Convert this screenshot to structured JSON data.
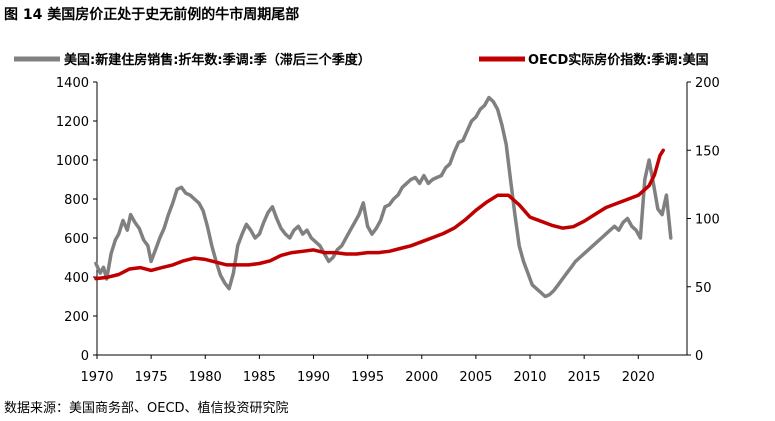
{
  "title": "图 14 美国房价正处于史无前例的牛市周期尾部",
  "source": "数据来源：美国商务部、OECD、植信投资研究院",
  "chart_data": {
    "type": "line",
    "legend_position": "top",
    "grid": false,
    "x_ticks": [
      "1970",
      "1975",
      "1980",
      "1985",
      "1990",
      "1995",
      "2000",
      "2005",
      "2010",
      "2015",
      "2020"
    ],
    "xlim": [
      1970,
      2024.5
    ],
    "y_left": {
      "ticks": [
        "0",
        "200",
        "400",
        "600",
        "800",
        "1000",
        "1200",
        "1400"
      ],
      "ylim": [
        0,
        1400
      ]
    },
    "y_right": {
      "ticks": [
        "0",
        "50",
        "100",
        "150",
        "200"
      ],
      "ylim": [
        0,
        200
      ]
    },
    "series": [
      {
        "name": "美国:新建住房销售:折年数:季调:季（滞后三个季度）",
        "axis": "left",
        "color": "#808080",
        "x": [
          1969.9,
          1970.3,
          1970.6,
          1970.9,
          1971.3,
          1971.7,
          1972.0,
          1972.4,
          1972.8,
          1973.1,
          1973.5,
          1973.9,
          1974.3,
          1974.7,
          1975.0,
          1975.4,
          1975.8,
          1976.2,
          1976.6,
          1977.0,
          1977.4,
          1977.8,
          1978.2,
          1978.6,
          1979.0,
          1979.4,
          1979.8,
          1980.2,
          1980.6,
          1981.0,
          1981.4,
          1981.8,
          1982.2,
          1982.6,
          1983.0,
          1983.4,
          1983.8,
          1984.2,
          1984.6,
          1985.0,
          1985.4,
          1985.8,
          1986.2,
          1986.6,
          1987.0,
          1987.4,
          1987.8,
          1988.2,
          1988.6,
          1989.0,
          1989.4,
          1989.8,
          1990.2,
          1990.6,
          1991.0,
          1991.4,
          1991.8,
          1992.2,
          1992.6,
          1993.0,
          1993.4,
          1993.8,
          1994.2,
          1994.6,
          1995.0,
          1995.4,
          1995.8,
          1996.2,
          1996.6,
          1997.0,
          1997.4,
          1997.8,
          1998.2,
          1998.6,
          1999.0,
          1999.4,
          1999.8,
          2000.2,
          2000.6,
          2001.0,
          2001.4,
          2001.8,
          2002.2,
          2002.6,
          2003.0,
          2003.4,
          2003.8,
          2004.2,
          2004.6,
          2005.0,
          2005.4,
          2005.8,
          2006.2,
          2006.6,
          2007.0,
          2007.4,
          2007.8,
          2008.2,
          2008.6,
          2009.0,
          2009.4,
          2009.8,
          2010.2,
          2010.6,
          2011.0,
          2011.4,
          2011.8,
          2012.2,
          2012.6,
          2013.0,
          2013.4,
          2013.8,
          2014.2,
          2014.6,
          2015.0,
          2015.4,
          2015.8,
          2016.2,
          2016.6,
          2017.0,
          2017.4,
          2017.8,
          2018.2,
          2018.6,
          2019.0,
          2019.4,
          2019.8,
          2020.2,
          2020.6,
          2021.0,
          2021.4,
          2021.8,
          2022.2,
          2022.6,
          2023.0
        ],
        "values": [
          470,
          420,
          450,
          390,
          520,
          590,
          620,
          690,
          640,
          720,
          680,
          650,
          590,
          560,
          480,
          540,
          600,
          650,
          720,
          780,
          850,
          860,
          830,
          820,
          800,
          780,
          740,
          660,
          560,
          480,
          410,
          370,
          340,
          420,
          560,
          620,
          670,
          640,
          600,
          620,
          680,
          730,
          760,
          700,
          650,
          620,
          600,
          640,
          660,
          620,
          640,
          600,
          580,
          560,
          520,
          480,
          500,
          540,
          560,
          600,
          640,
          680,
          720,
          780,
          660,
          620,
          650,
          690,
          760,
          770,
          800,
          820,
          860,
          880,
          900,
          910,
          880,
          920,
          880,
          900,
          910,
          920,
          960,
          980,
          1040,
          1090,
          1100,
          1150,
          1200,
          1220,
          1260,
          1280,
          1320,
          1300,
          1260,
          1180,
          1080,
          900,
          720,
          560,
          480,
          420,
          360,
          340,
          320,
          300,
          310,
          330,
          360,
          390,
          420,
          450,
          480,
          500,
          520,
          540,
          560,
          580,
          600,
          620,
          640,
          660,
          640,
          680,
          700,
          660,
          640,
          600,
          900,
          1000,
          880,
          750,
          720,
          820,
          600
        ]
      },
      {
        "name": "OECD实际房价指数:季调:美国",
        "axis": "right",
        "color": "#c00000",
        "x": [
          1969.9,
          1971.0,
          1972.0,
          1973.0,
          1974.0,
          1975.0,
          1976.0,
          1977.0,
          1978.0,
          1979.0,
          1980.0,
          1981.0,
          1982.0,
          1983.0,
          1984.0,
          1985.0,
          1986.0,
          1987.0,
          1988.0,
          1989.0,
          1990.0,
          1991.0,
          1992.0,
          1993.0,
          1994.0,
          1995.0,
          1996.0,
          1997.0,
          1998.0,
          1999.0,
          2000.0,
          2001.0,
          2002.0,
          2003.0,
          2004.0,
          2005.0,
          2006.0,
          2007.0,
          2008.0,
          2009.0,
          2010.0,
          2011.0,
          2012.0,
          2013.0,
          2014.0,
          2015.0,
          2016.0,
          2017.0,
          2018.0,
          2019.0,
          2020.0,
          2021.0,
          2021.5,
          2022.0,
          2022.3
        ],
        "values": [
          56,
          57,
          59,
          63,
          64,
          62,
          64,
          66,
          69,
          71,
          70,
          68,
          66,
          66,
          66,
          67,
          69,
          73,
          75,
          76,
          77,
          75,
          75,
          74,
          74,
          75,
          75,
          76,
          78,
          80,
          83,
          86,
          89,
          93,
          99,
          106,
          112,
          117,
          117,
          110,
          101,
          98,
          95,
          93,
          94,
          98,
          103,
          108,
          111,
          114,
          117,
          124,
          132,
          146,
          150
        ]
      }
    ]
  }
}
